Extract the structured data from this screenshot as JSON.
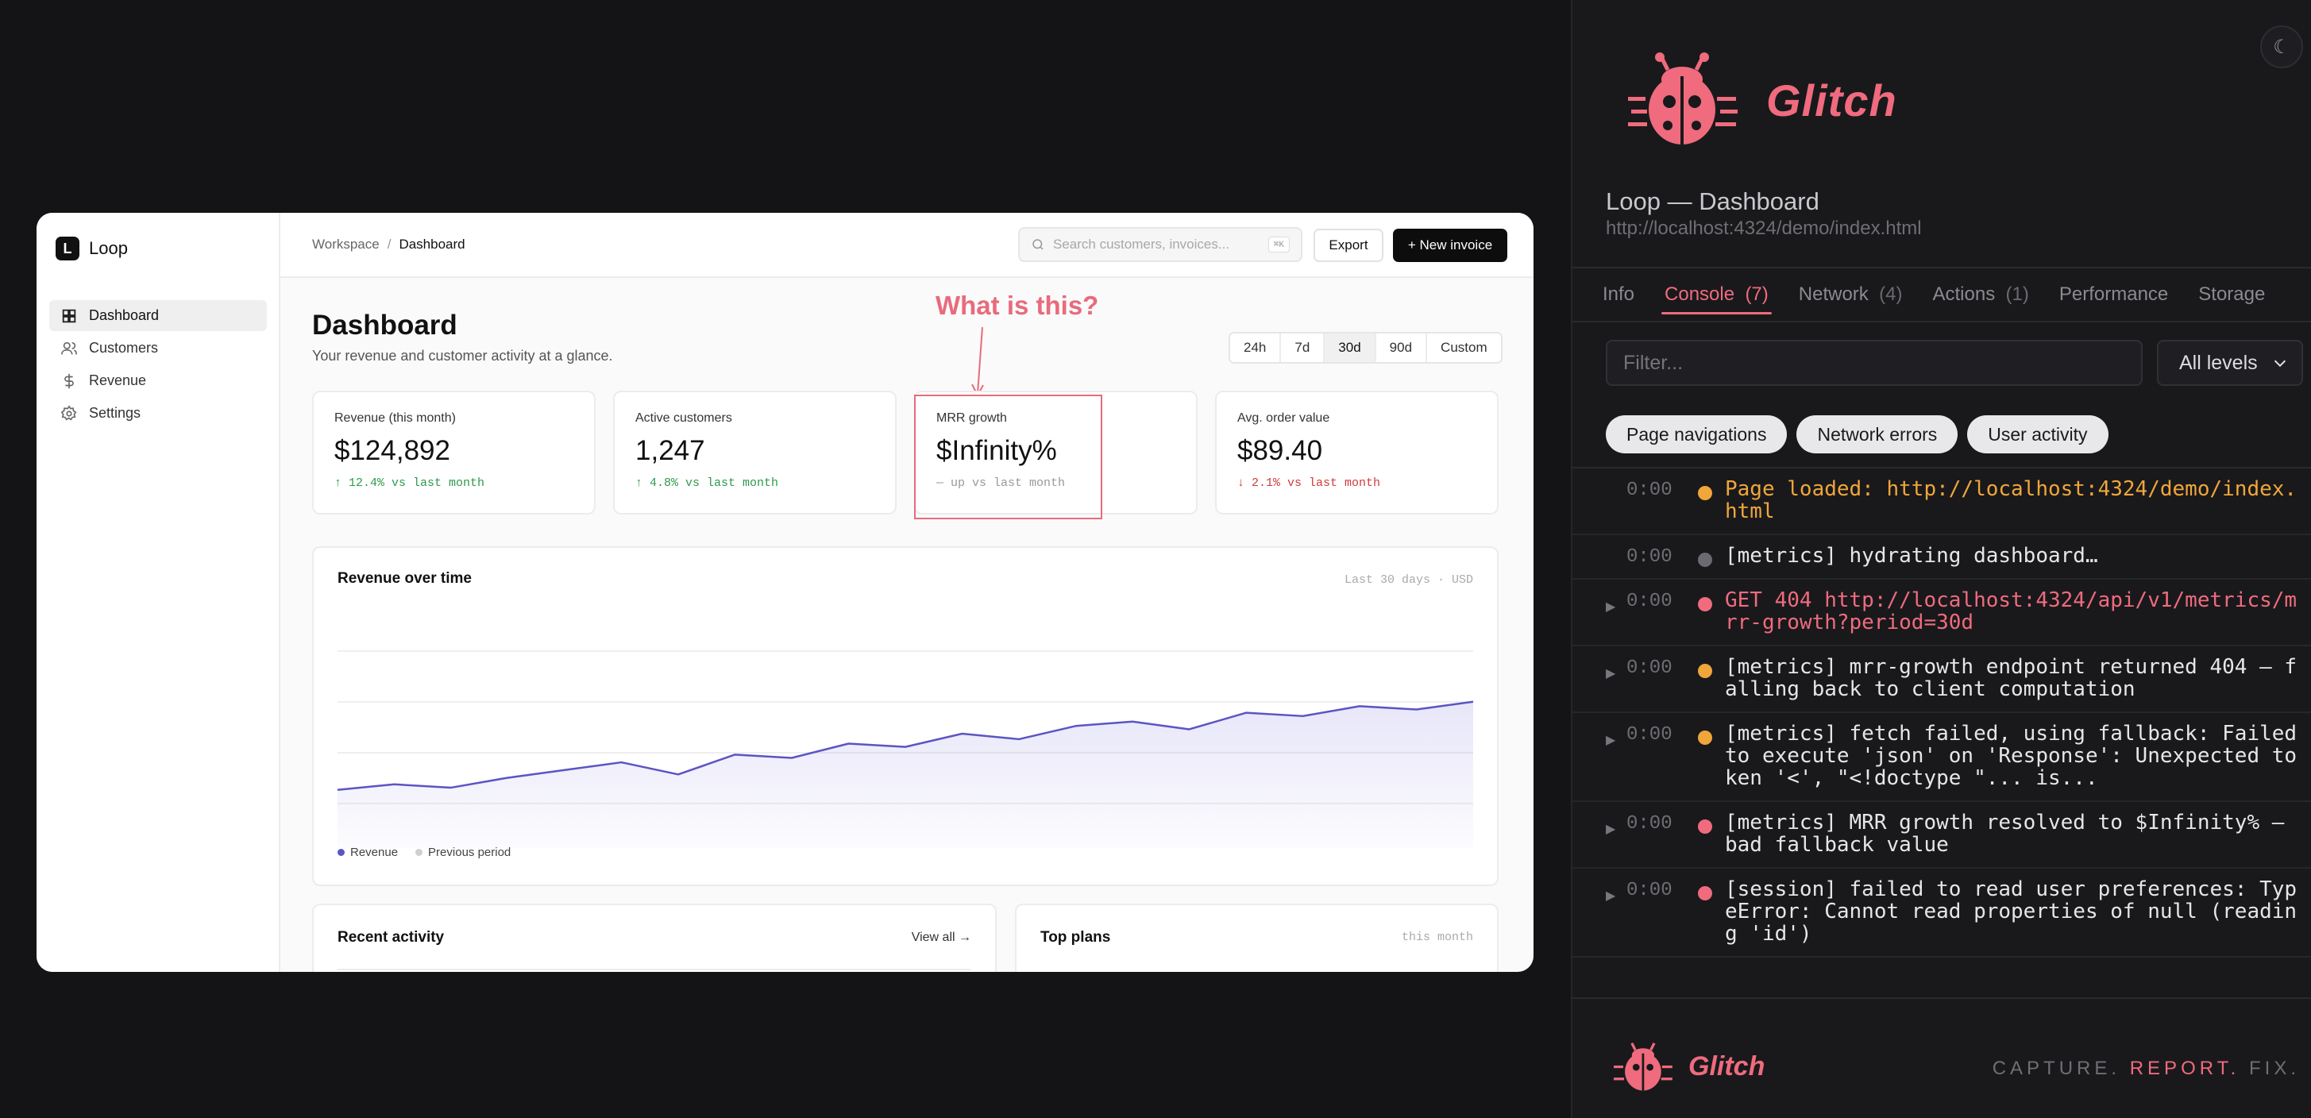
{
  "app": {
    "brand": {
      "mark": "L",
      "name": "Loop"
    },
    "nav": [
      {
        "label": "Dashboard",
        "icon": "grid-icon",
        "active": true
      },
      {
        "label": "Customers",
        "icon": "users-icon",
        "active": false
      },
      {
        "label": "Revenue",
        "icon": "dollar-icon",
        "active": false
      },
      {
        "label": "Settings",
        "icon": "gear-icon",
        "active": false
      }
    ],
    "breadcrumb": {
      "parent": "Workspace",
      "sep": "/",
      "current": "Dashboard"
    },
    "search": {
      "placeholder": "Search customers, invoices...",
      "shortcut": "⌘K"
    },
    "actions": {
      "export": "Export",
      "new_invoice": "+ New invoice"
    },
    "page": {
      "title": "Dashboard",
      "subtitle": "Your revenue and customer activity at a glance."
    },
    "ranges": [
      "24h",
      "7d",
      "30d",
      "90d",
      "Custom"
    ],
    "active_range": "30d",
    "kpis": [
      {
        "label": "Revenue (this month)",
        "value": "$124,892",
        "delta": "↑ 12.4% vs last month",
        "trend": "up"
      },
      {
        "label": "Active customers",
        "value": "1,247",
        "delta": "↑ 4.8% vs last month",
        "trend": "up"
      },
      {
        "label": "MRR growth",
        "value": "$Infinity%",
        "delta": "— up vs last month",
        "trend": "neutral"
      },
      {
        "label": "Avg. order value",
        "value": "$89.40",
        "delta": "↓ 2.1% vs last month",
        "trend": "down"
      }
    ],
    "annotation": "What is this?",
    "chart": {
      "title": "Revenue over time",
      "meta": "Last 30 days · USD",
      "legend": [
        {
          "name": "Revenue",
          "color": "#5b55c4"
        },
        {
          "name": "Previous period",
          "color": "#cfcfcf"
        }
      ]
    },
    "recent": {
      "title": "Recent activity",
      "link": "View all →"
    },
    "plans": {
      "title": "Top plans",
      "meta": "this month"
    }
  },
  "chart_data": {
    "type": "area",
    "title": "Revenue over time",
    "series": [
      {
        "name": "Revenue",
        "values": [
          24,
          29,
          26,
          35,
          42,
          49,
          38,
          56,
          53,
          66,
          63,
          75,
          70,
          82,
          86,
          79,
          94,
          91,
          100,
          97,
          104
        ]
      }
    ],
    "ylim": [
      0,
      150
    ],
    "grid": true,
    "legend_position": "bottom-left"
  },
  "panel": {
    "brand": "Glitch",
    "theme_icon": "☾",
    "page_title": "Loop — Dashboard",
    "page_url": "http://localhost:4324/demo/index.html",
    "tabs": [
      {
        "label": "Info",
        "count": ""
      },
      {
        "label": "Console",
        "count": "(7)"
      },
      {
        "label": "Network",
        "count": "(4)"
      },
      {
        "label": "Actions",
        "count": "(1)"
      },
      {
        "label": "Performance",
        "count": ""
      },
      {
        "label": "Storage",
        "count": ""
      }
    ],
    "active_tab": "Console",
    "filter_placeholder": "Filter...",
    "level_select": "All levels",
    "chips": [
      "Page navigations",
      "Network errors",
      "User activity"
    ],
    "logs": [
      {
        "expandable": false,
        "time": "0:00",
        "level": "warn",
        "color": "#f0a63a",
        "msg": "Page loaded: http://localhost:4324/demo/index.html",
        "msgColor": "#f0a63a"
      },
      {
        "expandable": false,
        "time": "0:00",
        "level": "info",
        "color": "#6a6a70",
        "msg": "[metrics] hydrating dashboard…",
        "msgColor": "#e6e6e8"
      },
      {
        "expandable": true,
        "time": "0:00",
        "level": "error",
        "color": "#ef6b7d",
        "msg": "GET 404 http://localhost:4324/api/v1/metrics/mrr-growth?period=30d",
        "msgColor": "#ef6b7d"
      },
      {
        "expandable": true,
        "time": "0:00",
        "level": "warn",
        "color": "#f0a63a",
        "msg": "[metrics] mrr-growth endpoint returned 404 — falling back to client computation",
        "msgColor": "#e6e6e8"
      },
      {
        "expandable": true,
        "time": "0:00",
        "level": "warn",
        "color": "#f0a63a",
        "msg": "[metrics] fetch failed, using fallback: Failed to execute 'json' on 'Response': Unexpected token '<', \"<!doctype \"... is...",
        "msgColor": "#e6e6e8"
      },
      {
        "expandable": true,
        "time": "0:00",
        "level": "error",
        "color": "#ef6b7d",
        "msg": "[metrics] MRR growth resolved to $Infinity% — bad fallback value",
        "msgColor": "#e6e6e8"
      },
      {
        "expandable": true,
        "time": "0:00",
        "level": "error",
        "color": "#ef6b7d",
        "msg": "[session] failed to read user preferences: TypeError: Cannot read properties of null (reading 'id')",
        "msgColor": "#e6e6e8"
      }
    ],
    "footer": {
      "brand": "Glitch",
      "tag1": "CAPTURE.",
      "tag2": "REPORT.",
      "tag3": "FIX."
    }
  }
}
